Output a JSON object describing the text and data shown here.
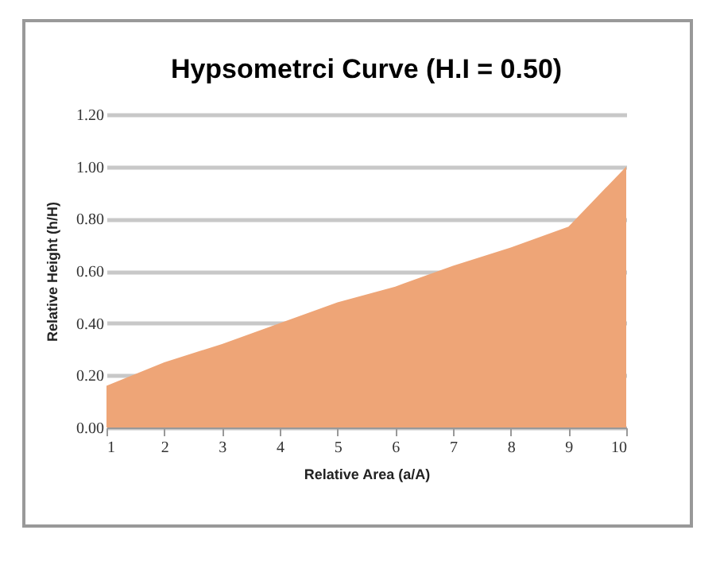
{
  "chart_data": {
    "type": "area",
    "title": "Hypsometrci Curve (H.I = 0.50)",
    "xlabel": "Relative Area (a/A)",
    "ylabel": "Relative Height (h/H)",
    "categories": [
      "1",
      "2",
      "3",
      "4",
      "5",
      "6",
      "7",
      "8",
      "9",
      "10"
    ],
    "values": [
      0.16,
      0.25,
      0.32,
      0.4,
      0.48,
      0.54,
      0.62,
      0.69,
      0.77,
      1.0
    ],
    "color": "#eea577",
    "ylim": [
      0,
      1.2
    ],
    "yticks": [
      {
        "value": 0,
        "label": "0.00"
      },
      {
        "value": 0.2,
        "label": "0.20"
      },
      {
        "value": 0.4,
        "label": "0.40"
      },
      {
        "value": 0.6,
        "label": "0.60"
      },
      {
        "value": 0.8,
        "label": "0.80"
      },
      {
        "value": 1,
        "label": "1.00"
      },
      {
        "value": 1.2,
        "label": "1.20"
      }
    ],
    "grid": "y"
  }
}
